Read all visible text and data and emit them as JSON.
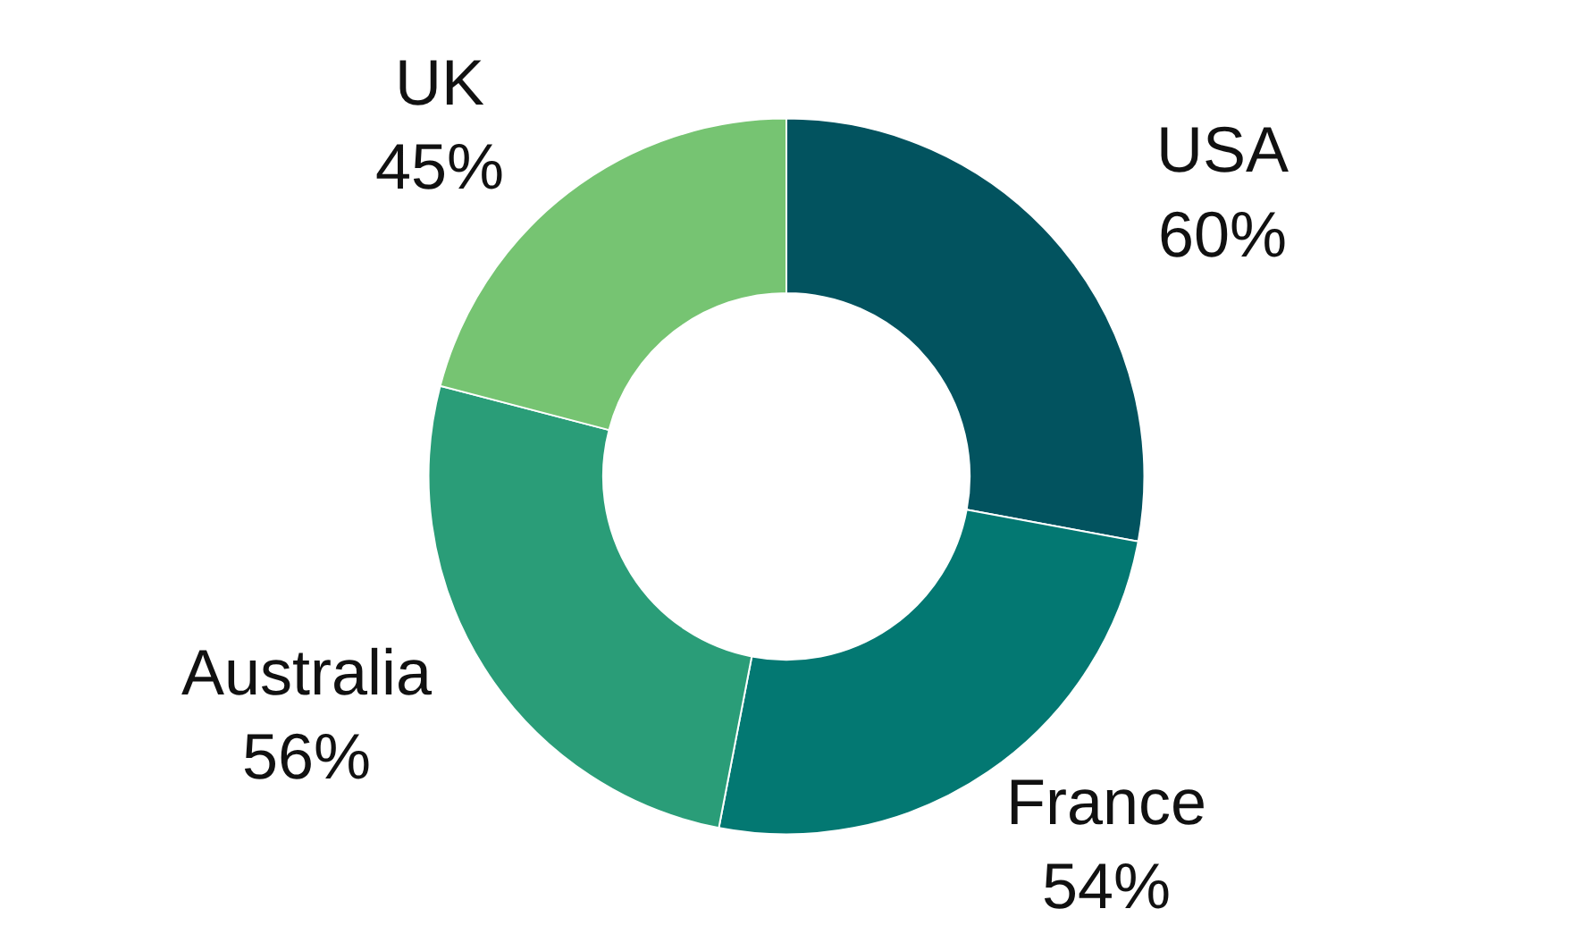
{
  "chart_data": {
    "type": "donut",
    "categories": [
      "USA",
      "France",
      "Australia",
      "UK"
    ],
    "values": [
      60,
      54,
      56,
      45
    ],
    "value_labels": [
      "60%",
      "54%",
      "56%",
      "45%"
    ],
    "colors": [
      "#02535f",
      "#037872",
      "#2a9d78",
      "#76c472"
    ]
  }
}
